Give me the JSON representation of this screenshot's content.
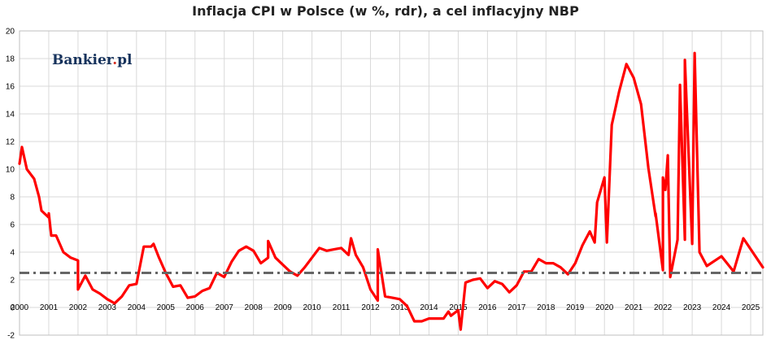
{
  "chart_data": {
    "type": "line",
    "title": "Inflacja CPI w Polsce (w %, rdr), a cel inflacyjny NBP",
    "xlabel": "",
    "ylabel": "",
    "x_start": "2000-01",
    "x_step": "quarter",
    "xlim": [
      "2000-01",
      "2025-06"
    ],
    "ylim": [
      -2,
      20
    ],
    "y_ticks": [
      "-2",
      "0",
      "2",
      "4",
      "6",
      "8",
      "10",
      "12",
      "14",
      "16",
      "18",
      "20"
    ],
    "x_ticks": [
      "2000",
      "2001",
      "2002",
      "2003",
      "2004",
      "2005",
      "2006",
      "2007",
      "2008",
      "2009",
      "2010",
      "2011",
      "2012",
      "2013",
      "2014",
      "2015",
      "2016",
      "2017",
      "2018",
      "2019",
      "2020",
      "2021",
      "2022",
      "2023",
      "2024",
      "2025"
    ],
    "grid": true,
    "series": [
      {
        "color": "#ff0000",
        "style": "solid",
        "values": [
          10.4,
          10.0,
          9.3,
          7.0,
          6.5,
          5.2,
          4.0,
          3.6,
          3.4,
          2.3,
          1.3,
          1.0,
          0.6,
          0.3,
          0.8,
          1.6,
          1.7,
          4.4,
          4.4,
          3.7,
          2.5,
          1.5,
          1.6,
          0.7,
          0.8,
          1.2,
          1.4,
          2.5,
          2.2,
          3.3,
          4.1,
          4.4,
          4.1,
          3.2,
          3.6,
          3.6,
          3.1,
          2.6,
          2.3,
          2.9,
          3.6,
          4.3,
          4.1,
          4.2,
          4.3,
          3.8,
          3.8,
          2.9,
          1.3,
          0.5,
          0.8,
          0.7,
          0.6,
          0.1,
          -1.0,
          -1.0,
          -0.8,
          -0.8,
          -0.8,
          -0.6,
          -0.2,
          1.8,
          2.0,
          2.1,
          1.4,
          1.9,
          1.7,
          1.1,
          1.6,
          2.6,
          2.6,
          3.5,
          3.2,
          3.2,
          2.9,
          2.4,
          3.2,
          4.5,
          5.5,
          7.6,
          9.4,
          13.2,
          15.6,
          17.6,
          16.6,
          14.7,
          10.1,
          6.6,
          2.7,
          2.2,
          4.9,
          4.9,
          4.6,
          4.0,
          3.0
        ],
        "markers": [
          {
            "x": "2000-02",
            "y": 11.6
          },
          {
            "x": "2000-09",
            "y": 8.0
          },
          {
            "x": "2001-01",
            "y": 6.8
          },
          {
            "x": "2001-02",
            "y": 5.2
          },
          {
            "x": "2002-01",
            "y": 1.3
          },
          {
            "x": "2004-08",
            "y": 4.6
          },
          {
            "x": "2008-07",
            "y": 4.8
          },
          {
            "x": "2011-05",
            "y": 5.0
          },
          {
            "x": "2012-04",
            "y": 4.2
          },
          {
            "x": "2014-09",
            "y": -0.3
          },
          {
            "x": "2015-02",
            "y": -1.6
          },
          {
            "x": "2019-09",
            "y": 4.7
          },
          {
            "x": "2020-02",
            "y": 4.7
          },
          {
            "x": "2021-10",
            "y": 6.8
          },
          {
            "x": "2022-01",
            "y": 9.4
          },
          {
            "x": "2022-02",
            "y": 8.5
          },
          {
            "x": "2022-03",
            "y": 11.0
          },
          {
            "x": "2022-08",
            "y": 16.1
          },
          {
            "x": "2022-10",
            "y": 17.9
          },
          {
            "x": "2023-02",
            "y": 18.4
          },
          {
            "x": "2024-01",
            "y": 3.7
          },
          {
            "x": "2024-06",
            "y": 2.6
          },
          {
            "x": "2024-10",
            "y": 5.0
          },
          {
            "x": "2025-06",
            "y": 2.9
          }
        ]
      },
      {
        "color": "#666666",
        "style": "dash-dot",
        "values": [
          2.5,
          2.5
        ]
      }
    ]
  },
  "logo": {
    "text": "Bankier",
    "dot": ".",
    "suffix": "pl"
  }
}
